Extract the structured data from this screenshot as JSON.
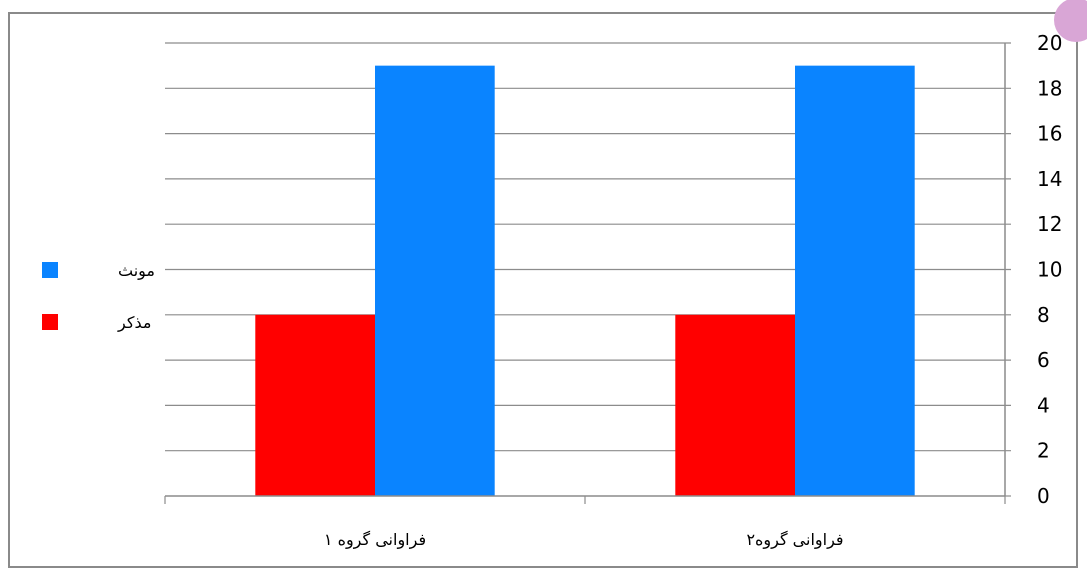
{
  "colors": {
    "series_female": "#0a84ff",
    "series_male": "#ff0000",
    "grid": "#8c8c8c",
    "frame": "#8a8a8a",
    "corner_accent": "#d9a6d6"
  },
  "chart_data": {
    "type": "bar",
    "categories": [
      "فراوانی گروه ۱",
      "فراوانی گروه۲"
    ],
    "series": [
      {
        "name": "مذکر",
        "values": [
          8,
          8
        ],
        "color": "#ff0000"
      },
      {
        "name": "مونث",
        "values": [
          19,
          19
        ],
        "color": "#0a84ff"
      }
    ],
    "title": "",
    "xlabel": "",
    "ylabel": "",
    "ylim": [
      0,
      20
    ],
    "yticks": [
      0,
      2,
      4,
      6,
      8,
      10,
      12,
      14,
      16,
      18,
      20
    ],
    "y_axis_side": "right",
    "grid": true,
    "legend_position": "left",
    "legend_order": [
      "مونث",
      "مذکر"
    ]
  }
}
